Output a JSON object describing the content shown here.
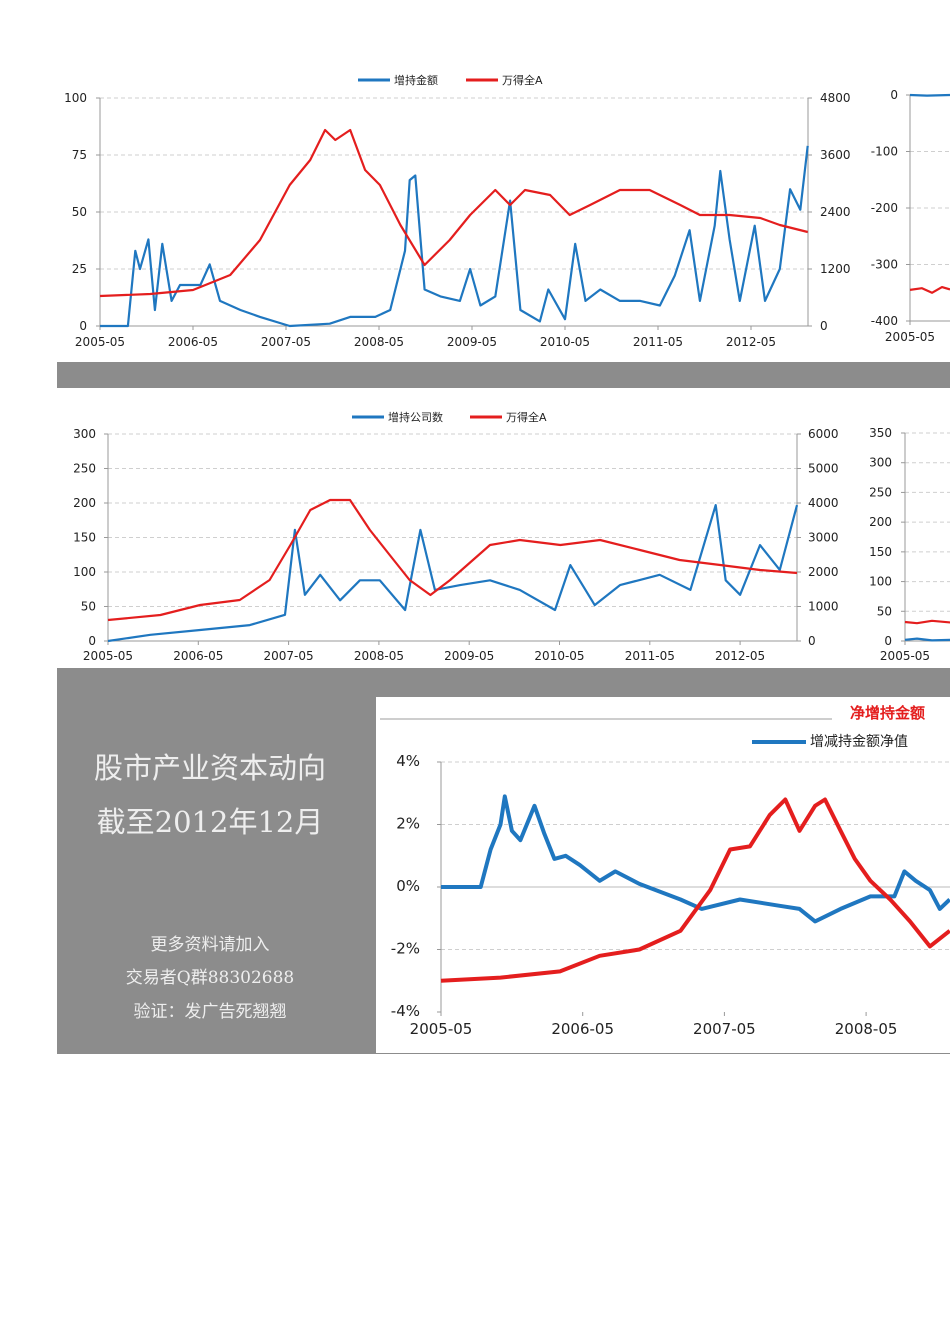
{
  "colors": {
    "blue": "#1f77c0",
    "red": "#e41e1e",
    "gray_band": "#8c8c8c",
    "grid": "#cfcfcf"
  },
  "panel": {
    "title_line1": "股市产业资本动向",
    "title_line2": "截至2012年12月",
    "note_line1": "更多资料请加入",
    "note_line2": "交易者Q群88302688",
    "note_line3": "验证：发广告死翘翘"
  },
  "chart_data": [
    {
      "id": "c1",
      "type": "line",
      "legend": [
        "增持金额",
        "万得全A"
      ],
      "legend_position": "top-center",
      "x_ticks": [
        "2005-05",
        "2006-05",
        "2007-05",
        "2008-05",
        "2009-05",
        "2010-05",
        "2011-05",
        "2012-05"
      ],
      "y_left": {
        "range": [
          0,
          100
        ],
        "ticks": [
          0,
          25,
          50,
          75,
          100
        ]
      },
      "y_right": {
        "range": [
          0,
          4800
        ],
        "ticks": [
          0,
          1200,
          2400,
          3600,
          4800
        ]
      },
      "grid": true,
      "series": [
        {
          "name": "增持金额",
          "axis": "left",
          "color": "blue",
          "x": [
            2005.33,
            2005.63,
            2005.71,
            2005.76,
            2005.85,
            2005.92,
            2006.0,
            2006.1,
            2006.19,
            2006.41,
            2006.51,
            2006.62,
            2006.84,
            2007.05,
            2007.37,
            2007.8,
            2008.02,
            2008.29,
            2008.45,
            2008.61,
            2008.66,
            2008.72,
            2008.82,
            2008.99,
            2009.2,
            2009.31,
            2009.42,
            2009.58,
            2009.74,
            2009.85,
            2010.06,
            2010.15,
            2010.33,
            2010.44,
            2010.55,
            2010.71,
            2010.92,
            2011.14,
            2011.35,
            2011.51,
            2011.67,
            2011.78,
            2011.94,
            2012.0,
            2012.1,
            2012.21,
            2012.37,
            2012.48,
            2012.64,
            2012.75,
            2012.86,
            2012.94
          ],
          "y": [
            0,
            0,
            33,
            25,
            38,
            7,
            36,
            11,
            18,
            18,
            27,
            11,
            7,
            4,
            0,
            1,
            4,
            4,
            7,
            33,
            64,
            66,
            16,
            13,
            11,
            25,
            9,
            13,
            55,
            7,
            2,
            16,
            3,
            36,
            11,
            16,
            11,
            11,
            9,
            22,
            42,
            11,
            44,
            68,
            38,
            11,
            44,
            11,
            25,
            60,
            51,
            79
          ]
        },
        {
          "name": "万得全A",
          "axis": "right",
          "color": "red",
          "x": [
            2005.33,
            2005.87,
            2006.33,
            2006.73,
            2007.05,
            2007.37,
            2007.59,
            2007.75,
            2007.86,
            2008.02,
            2008.18,
            2008.34,
            2008.56,
            2008.82,
            2009.09,
            2009.31,
            2009.58,
            2009.74,
            2009.9,
            2010.17,
            2010.38,
            2010.6,
            2010.92,
            2011.24,
            2011.57,
            2011.78,
            2012.1,
            2012.43,
            2012.64,
            2012.94
          ],
          "y": [
            632,
            674,
            758,
            1074,
            1810,
            2968,
            3495,
            4126,
            3916,
            4126,
            3284,
            2968,
            2126,
            1284,
            1810,
            2337,
            2863,
            2547,
            2863,
            2758,
            2337,
            2547,
            2863,
            2863,
            2547,
            2337,
            2337,
            2274,
            2126,
            1979
          ]
        }
      ]
    },
    {
      "id": "c1b",
      "type": "line",
      "x_ticks": [
        "2005-05"
      ],
      "y_left": {
        "range": [
          -400,
          0
        ],
        "ticks": [
          -400,
          -300,
          -200,
          -100,
          0
        ]
      },
      "grid": true,
      "series": [
        {
          "name": "blue",
          "axis": "left",
          "color": "blue",
          "x": [
            2005.33,
            2005.5,
            2005.73
          ],
          "y": [
            0,
            -1,
            0
          ]
        },
        {
          "name": "red",
          "axis": "left",
          "color": "red",
          "x": [
            2005.33,
            2005.45,
            2005.55,
            2005.65,
            2005.73
          ],
          "y": [
            -345,
            -342,
            -350,
            -340,
            -344
          ]
        }
      ]
    },
    {
      "id": "c2",
      "type": "line",
      "legend": [
        "增持公司数",
        "万得全A"
      ],
      "legend_position": "top-center",
      "x_ticks": [
        "2005-05",
        "2006-05",
        "2007-05",
        "2008-05",
        "2009-05",
        "2010-05",
        "2011-05",
        "2012-05"
      ],
      "y_left": {
        "range": [
          0,
          300
        ],
        "ticks": [
          0,
          50,
          100,
          150,
          200,
          250,
          300
        ]
      },
      "y_right": {
        "range": [
          0,
          6000
        ],
        "ticks": [
          0,
          1000,
          2000,
          3000,
          4000,
          5000,
          6000
        ]
      },
      "grid": true,
      "series": [
        {
          "name": "增持公司数",
          "axis": "left",
          "color": "blue",
          "x": [
            2005.33,
            2005.8,
            2006.35,
            2006.9,
            2007.29,
            2007.4,
            2007.51,
            2007.68,
            2007.9,
            2008.12,
            2008.34,
            2008.62,
            2008.79,
            2008.95,
            2009.23,
            2009.56,
            2009.89,
            2010.28,
            2010.45,
            2010.72,
            2011.0,
            2011.44,
            2011.78,
            2012.06,
            2012.17,
            2012.33,
            2012.55,
            2012.77,
            2012.96
          ],
          "y": [
            0,
            9,
            16,
            23,
            38,
            161,
            67,
            96,
            59,
            88,
            88,
            45,
            161,
            74,
            81,
            88,
            74,
            45,
            110,
            52,
            81,
            96,
            74,
            197,
            88,
            67,
            139,
            103,
            197
          ]
        },
        {
          "name": "万得全A",
          "axis": "right",
          "color": "red",
          "x": [
            2005.33,
            2005.91,
            2006.35,
            2006.79,
            2007.12,
            2007.35,
            2007.57,
            2007.79,
            2008.01,
            2008.23,
            2008.45,
            2008.67,
            2008.9,
            2009.12,
            2009.56,
            2009.89,
            2010.34,
            2010.78,
            2011.22,
            2011.66,
            2012.11,
            2012.55,
            2012.96
          ],
          "y": [
            609,
            754,
            1044,
            1189,
            1768,
            2783,
            3798,
            4088,
            4088,
            3218,
            2493,
            1768,
            1334,
            1768,
            2783,
            2928,
            2783,
            2928,
            2638,
            2348,
            2203,
            2058,
            1971
          ]
        }
      ]
    },
    {
      "id": "c2b",
      "type": "line",
      "x_ticks": [
        "2005-05"
      ],
      "y_left": {
        "range": [
          0,
          350
        ],
        "ticks": [
          0,
          50,
          100,
          150,
          200,
          250,
          300,
          350
        ]
      },
      "grid": true,
      "series": [
        {
          "name": "blue",
          "axis": "left",
          "color": "blue",
          "x": [
            2005.33,
            2005.45,
            2005.6,
            2005.8
          ],
          "y": [
            2,
            4,
            1,
            2
          ]
        },
        {
          "name": "red",
          "axis": "left",
          "color": "red",
          "x": [
            2005.33,
            2005.45,
            2005.6,
            2005.8
          ],
          "y": [
            32,
            30,
            34,
            31
          ]
        }
      ]
    },
    {
      "id": "c3",
      "type": "line",
      "title": "净增持金额",
      "legend": [
        "增减持金额净值"
      ],
      "legend_position": "top-right",
      "x_ticks": [
        "2005-05",
        "2006-05",
        "2007-05",
        "2008-05"
      ],
      "y_left": {
        "range": [
          -4,
          4
        ],
        "ticks": [
          -4,
          -2,
          0,
          2,
          4
        ],
        "tick_labels": [
          "-4%",
          "-2%",
          "0%",
          "2%",
          "4%"
        ]
      },
      "grid": true,
      "series": [
        {
          "name": "增减持金额净值",
          "axis": "left",
          "color": "blue",
          "x": [
            2005.33,
            2005.61,
            2005.68,
            2005.75,
            2005.78,
            2005.83,
            2005.89,
            2005.99,
            2006.06,
            2006.13,
            2006.21,
            2006.31,
            2006.45,
            2006.56,
            2006.73,
            2007.02,
            2007.17,
            2007.44,
            2007.72,
            2007.86,
            2007.97,
            2008.15,
            2008.36,
            2008.53,
            2008.6,
            2008.68,
            2008.78,
            2008.85,
            2008.92
          ],
          "y": [
            0,
            0,
            1.2,
            2.0,
            2.9,
            1.8,
            1.5,
            2.6,
            1.7,
            0.9,
            1.0,
            0.7,
            0.2,
            0.5,
            0.1,
            -0.4,
            -0.7,
            -0.4,
            -0.6,
            -0.7,
            -1.1,
            -0.7,
            -0.3,
            -0.3,
            0.5,
            0.2,
            -0.1,
            -0.7,
            -0.4
          ]
        },
        {
          "name": "red",
          "axis": "left",
          "color": "red",
          "x": [
            2005.33,
            2005.75,
            2006.17,
            2006.45,
            2006.73,
            2007.02,
            2007.23,
            2007.37,
            2007.51,
            2007.65,
            2007.76,
            2007.86,
            2007.97,
            2008.04,
            2008.15,
            2008.25,
            2008.36,
            2008.5,
            2008.64,
            2008.78,
            2008.92
          ],
          "y": [
            -3.0,
            -2.9,
            -2.7,
            -2.2,
            -2.0,
            -1.4,
            -0.1,
            1.2,
            1.3,
            2.3,
            2.8,
            1.8,
            2.6,
            2.8,
            1.8,
            0.9,
            0.2,
            -0.4,
            -1.1,
            -1.9,
            -1.4
          ]
        }
      ]
    }
  ]
}
